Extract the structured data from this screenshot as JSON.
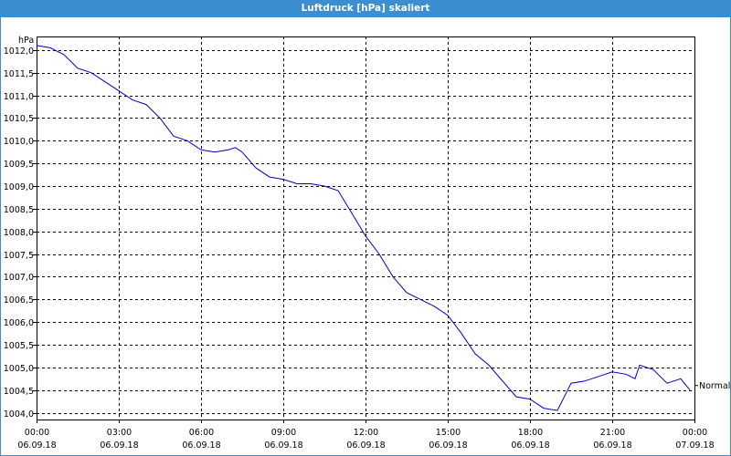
{
  "chart_data": {
    "type": "line",
    "title": "Luftdruck [hPa] skaliert",
    "ylabel": "hPa",
    "xlabel": "",
    "ylim": [
      1003.85,
      1012.3
    ],
    "xlim_hours": [
      0,
      24
    ],
    "grid": true,
    "y_ticks": [
      "1004,0",
      "1004,5",
      "1005,0",
      "1005,5",
      "1006,0",
      "1006,5",
      "1007,0",
      "1007,5",
      "1008,0",
      "1008,5",
      "1009,0",
      "1009,5",
      "1010,0",
      "1010,5",
      "1011,0",
      "1011,5",
      "1012,0"
    ],
    "x_ticks": [
      {
        "time": "00:00",
        "date": "06.09.18"
      },
      {
        "time": "03:00",
        "date": "06.09.18"
      },
      {
        "time": "06:00",
        "date": "06.09.18"
      },
      {
        "time": "09:00",
        "date": "06.09.18"
      },
      {
        "time": "12:00",
        "date": "06.09.18"
      },
      {
        "time": "15:00",
        "date": "06.09.18"
      },
      {
        "time": "18:00",
        "date": "06.09.18"
      },
      {
        "time": "21:00",
        "date": "06.09.18"
      },
      {
        "time": "00:00",
        "date": "07.09.18"
      }
    ],
    "series": [
      {
        "name": "Normal",
        "color": "#0000c0",
        "x": [
          "00:00",
          "00:30",
          "01:00",
          "01:30",
          "02:00",
          "02:30",
          "03:00",
          "03:30",
          "04:00",
          "04:30",
          "05:00",
          "05:30",
          "06:00",
          "06:30",
          "07:00",
          "07:15",
          "07:30",
          "08:00",
          "08:30",
          "09:00",
          "09:30",
          "10:00",
          "10:30",
          "11:00",
          "11:30",
          "12:00",
          "12:30",
          "13:00",
          "13:30",
          "14:00",
          "14:30",
          "15:00",
          "15:30",
          "16:00",
          "16:30",
          "17:00",
          "17:30",
          "18:00",
          "18:30",
          "19:00",
          "19:30",
          "20:00",
          "20:30",
          "21:00",
          "21:30",
          "21:50",
          "22:00",
          "22:30",
          "23:00",
          "23:30",
          "23:50"
        ],
        "y": [
          1012.1,
          1012.05,
          1011.9,
          1011.6,
          1011.5,
          1011.3,
          1011.1,
          1010.9,
          1010.8,
          1010.5,
          1010.1,
          1010.0,
          1009.8,
          1009.75,
          1009.8,
          1009.85,
          1009.75,
          1009.4,
          1009.2,
          1009.15,
          1009.05,
          1009.05,
          1009.0,
          1008.9,
          1008.4,
          1007.9,
          1007.5,
          1007.0,
          1006.65,
          1006.5,
          1006.35,
          1006.15,
          1005.75,
          1005.3,
          1005.05,
          1004.7,
          1004.35,
          1004.3,
          1004.1,
          1004.05,
          1004.65,
          1004.7,
          1004.8,
          1004.9,
          1004.85,
          1004.75,
          1005.05,
          1004.95,
          1004.65,
          1004.75,
          1004.5
        ]
      }
    ]
  }
}
